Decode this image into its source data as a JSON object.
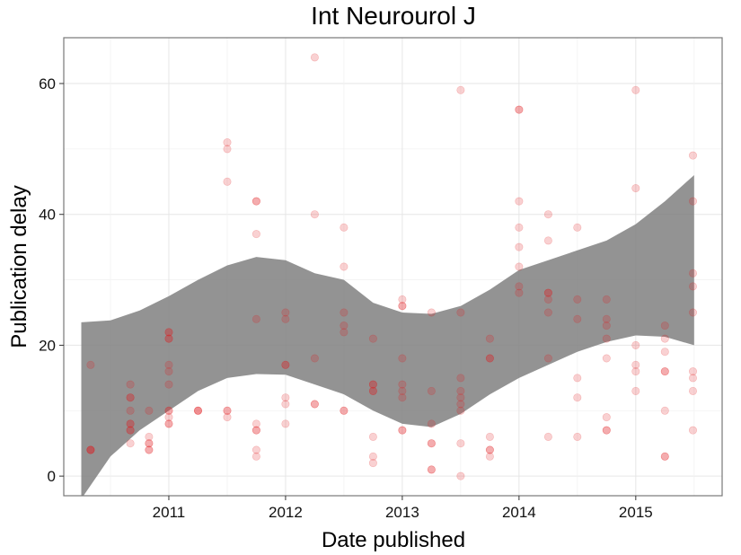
{
  "chart_data": {
    "type": "scatter",
    "title": "Int Neurourol J",
    "xlabel": "Date published",
    "ylabel": "Publication delay",
    "x_ticks": [
      "2011",
      "2012",
      "2013",
      "2014",
      "2015"
    ],
    "y_ticks": [
      0,
      20,
      40,
      60
    ],
    "xlim": [
      2010.1,
      2015.74
    ],
    "ylim": [
      -3,
      67
    ],
    "grid": true,
    "point_color": "#e31a1c",
    "band_color": "#808080",
    "points": [
      [
        2010.33,
        17
      ],
      [
        2010.33,
        4
      ],
      [
        2010.33,
        4
      ],
      [
        2010.33,
        4
      ],
      [
        2010.67,
        14
      ],
      [
        2010.67,
        12
      ],
      [
        2010.67,
        12
      ],
      [
        2010.67,
        10
      ],
      [
        2010.67,
        8
      ],
      [
        2010.67,
        8
      ],
      [
        2010.67,
        7
      ],
      [
        2010.67,
        7
      ],
      [
        2010.67,
        5
      ],
      [
        2010.83,
        10
      ],
      [
        2010.83,
        6
      ],
      [
        2010.83,
        5
      ],
      [
        2010.83,
        5
      ],
      [
        2010.83,
        4
      ],
      [
        2010.83,
        4
      ],
      [
        2011.0,
        22
      ],
      [
        2011.0,
        22
      ],
      [
        2011.0,
        21
      ],
      [
        2011.0,
        21
      ],
      [
        2011.0,
        17
      ],
      [
        2011.0,
        16
      ],
      [
        2011.0,
        14
      ],
      [
        2011.0,
        10
      ],
      [
        2011.0,
        10
      ],
      [
        2011.0,
        9
      ],
      [
        2011.0,
        8
      ],
      [
        2011.0,
        8
      ],
      [
        2011.25,
        10
      ],
      [
        2011.25,
        10
      ],
      [
        2011.25,
        10
      ],
      [
        2011.5,
        51
      ],
      [
        2011.5,
        50
      ],
      [
        2011.5,
        45
      ],
      [
        2011.5,
        10
      ],
      [
        2011.5,
        10
      ],
      [
        2011.5,
        9
      ],
      [
        2011.75,
        42
      ],
      [
        2011.75,
        42
      ],
      [
        2011.75,
        37
      ],
      [
        2011.75,
        24
      ],
      [
        2011.75,
        8
      ],
      [
        2011.75,
        7
      ],
      [
        2011.75,
        7
      ],
      [
        2011.75,
        4
      ],
      [
        2011.75,
        3
      ],
      [
        2012.0,
        25
      ],
      [
        2012.0,
        24
      ],
      [
        2012.0,
        17
      ],
      [
        2012.0,
        17
      ],
      [
        2012.0,
        12
      ],
      [
        2012.0,
        11
      ],
      [
        2012.0,
        8
      ],
      [
        2012.25,
        64
      ],
      [
        2012.25,
        40
      ],
      [
        2012.25,
        18
      ],
      [
        2012.25,
        11
      ],
      [
        2012.25,
        11
      ],
      [
        2012.5,
        38
      ],
      [
        2012.5,
        32
      ],
      [
        2012.5,
        25
      ],
      [
        2012.5,
        23
      ],
      [
        2012.5,
        22
      ],
      [
        2012.5,
        10
      ],
      [
        2012.5,
        10
      ],
      [
        2012.75,
        21
      ],
      [
        2012.75,
        14
      ],
      [
        2012.75,
        14
      ],
      [
        2012.75,
        13
      ],
      [
        2012.75,
        13
      ],
      [
        2012.75,
        6
      ],
      [
        2012.75,
        3
      ],
      [
        2012.75,
        2
      ],
      [
        2013.0,
        27
      ],
      [
        2013.0,
        26
      ],
      [
        2013.0,
        26
      ],
      [
        2013.0,
        18
      ],
      [
        2013.0,
        14
      ],
      [
        2013.0,
        13
      ],
      [
        2013.0,
        12
      ],
      [
        2013.0,
        7
      ],
      [
        2013.0,
        7
      ],
      [
        2013.25,
        25
      ],
      [
        2013.25,
        13
      ],
      [
        2013.25,
        8
      ],
      [
        2013.25,
        5
      ],
      [
        2013.25,
        5
      ],
      [
        2013.25,
        1
      ],
      [
        2013.25,
        1
      ],
      [
        2013.5,
        59
      ],
      [
        2013.5,
        25
      ],
      [
        2013.5,
        15
      ],
      [
        2013.5,
        13
      ],
      [
        2013.5,
        12
      ],
      [
        2013.5,
        11
      ],
      [
        2013.5,
        10
      ],
      [
        2013.5,
        5
      ],
      [
        2013.5,
        0
      ],
      [
        2013.75,
        21
      ],
      [
        2013.75,
        18
      ],
      [
        2013.75,
        18
      ],
      [
        2013.75,
        6
      ],
      [
        2013.75,
        4
      ],
      [
        2013.75,
        4
      ],
      [
        2013.75,
        3
      ],
      [
        2014.0,
        56
      ],
      [
        2014.0,
        56
      ],
      [
        2014.0,
        42
      ],
      [
        2014.0,
        38
      ],
      [
        2014.0,
        35
      ],
      [
        2014.0,
        32
      ],
      [
        2014.0,
        29
      ],
      [
        2014.0,
        28
      ],
      [
        2014.25,
        40
      ],
      [
        2014.25,
        36
      ],
      [
        2014.25,
        28
      ],
      [
        2014.25,
        28
      ],
      [
        2014.25,
        27
      ],
      [
        2014.25,
        25
      ],
      [
        2014.25,
        18
      ],
      [
        2014.25,
        6
      ],
      [
        2014.5,
        38
      ],
      [
        2014.5,
        27
      ],
      [
        2014.5,
        24
      ],
      [
        2014.5,
        15
      ],
      [
        2014.5,
        12
      ],
      [
        2014.5,
        6
      ],
      [
        2014.75,
        27
      ],
      [
        2014.75,
        24
      ],
      [
        2014.75,
        23
      ],
      [
        2014.75,
        21
      ],
      [
        2014.75,
        18
      ],
      [
        2014.75,
        9
      ],
      [
        2014.75,
        7
      ],
      [
        2014.75,
        7
      ],
      [
        2015.0,
        59
      ],
      [
        2015.0,
        44
      ],
      [
        2015.0,
        20
      ],
      [
        2015.0,
        17
      ],
      [
        2015.0,
        16
      ],
      [
        2015.0,
        13
      ],
      [
        2015.25,
        23
      ],
      [
        2015.25,
        21
      ],
      [
        2015.25,
        19
      ],
      [
        2015.25,
        16
      ],
      [
        2015.25,
        16
      ],
      [
        2015.25,
        10
      ],
      [
        2015.25,
        3
      ],
      [
        2015.25,
        3
      ],
      [
        2015.49,
        49
      ],
      [
        2015.49,
        42
      ],
      [
        2015.49,
        31
      ],
      [
        2015.49,
        29
      ],
      [
        2015.49,
        25
      ],
      [
        2015.49,
        16
      ],
      [
        2015.49,
        15
      ],
      [
        2015.49,
        13
      ],
      [
        2015.49,
        7
      ]
    ],
    "band": {
      "x": [
        2010.25,
        2010.5,
        2010.75,
        2011.0,
        2011.25,
        2011.5,
        2011.75,
        2012.0,
        2012.25,
        2012.5,
        2012.75,
        2013.0,
        2013.25,
        2013.5,
        2013.75,
        2014.0,
        2014.25,
        2014.5,
        2014.75,
        2015.0,
        2015.25,
        2015.5
      ],
      "upper": [
        23.5,
        23.8,
        25.3,
        27.5,
        30.0,
        32.2,
        33.5,
        33.0,
        31.0,
        30.0,
        26.5,
        25.0,
        24.8,
        26.0,
        28.5,
        31.5,
        33.0,
        34.5,
        36.0,
        38.5,
        42.0,
        46.0
      ],
      "lower": [
        -3.5,
        3.0,
        7.0,
        10.0,
        13.0,
        15.0,
        15.6,
        15.5,
        14.0,
        12.5,
        10.0,
        8.0,
        7.5,
        9.5,
        12.5,
        15.0,
        17.0,
        19.0,
        20.5,
        21.5,
        21.3,
        20.0
      ]
    }
  }
}
